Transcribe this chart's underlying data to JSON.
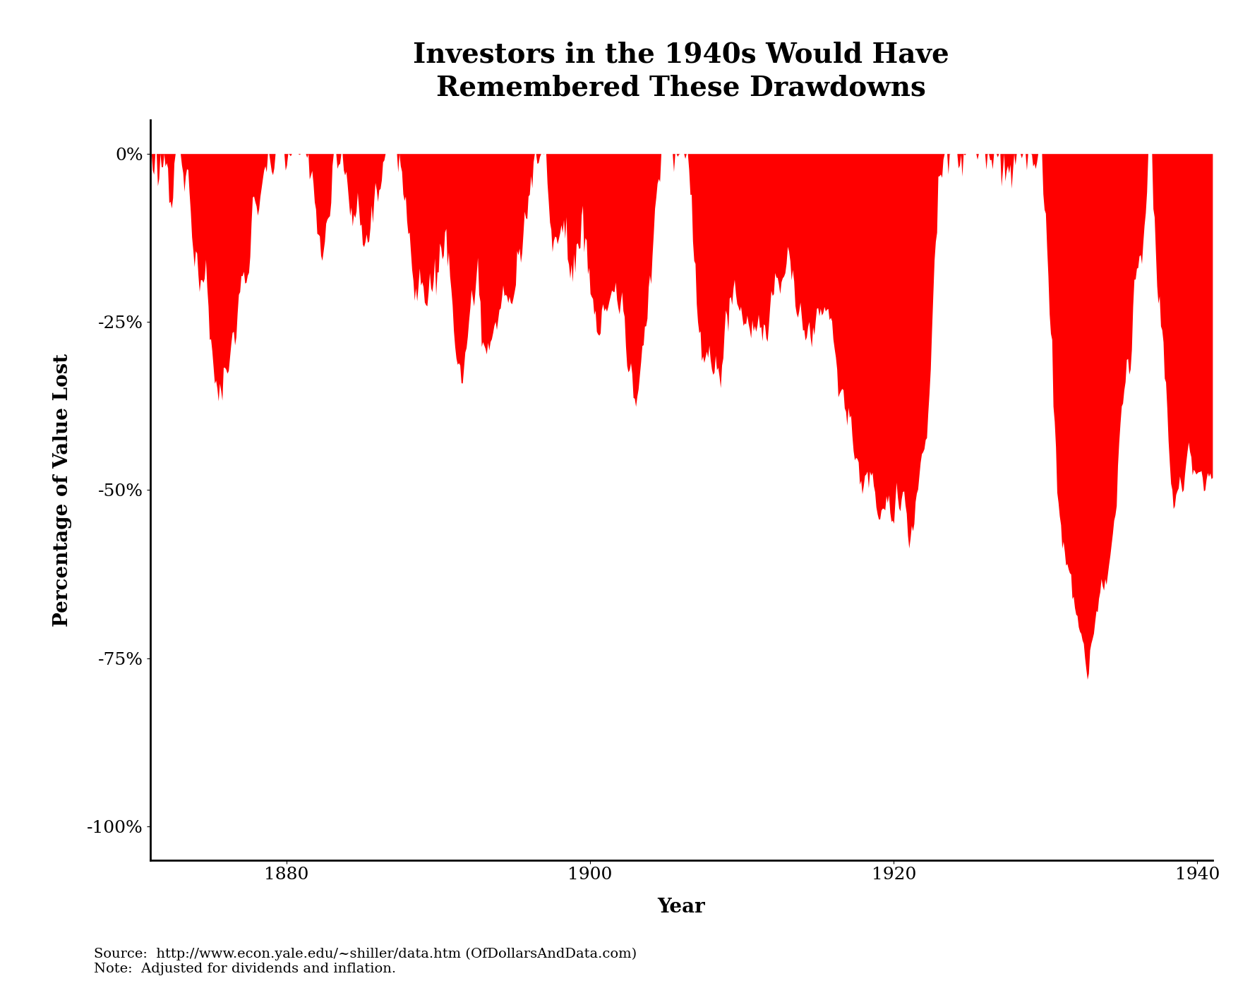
{
  "title": "Investors in the 1940s Would Have\nRemembered These Drawdowns",
  "xlabel": "Year",
  "ylabel": "Percentage of Value Lost",
  "fill_color": "#FF0000",
  "background_color": "#FFFFFF",
  "source_text": "Source:  http://www.econ.yale.edu/~shiller/data.htm (OfDollarsAndData.com)\nNote:  Adjusted for dividends and inflation.",
  "ytick_labels": [
    "0%",
    "-25%",
    "-50%",
    "-75%",
    "-100%"
  ],
  "ytick_values": [
    0,
    -25,
    -50,
    -75,
    -100
  ],
  "xtick_values": [
    1880,
    1900,
    1920,
    1940
  ],
  "xtick_labels": [
    "1880",
    "1900",
    "1920",
    "1940"
  ],
  "xlim": [
    1871,
    1941
  ],
  "ylim": [
    -105,
    5
  ],
  "title_fontsize": 28,
  "axis_fontsize": 20,
  "tick_fontsize": 18,
  "source_fontsize": 14
}
